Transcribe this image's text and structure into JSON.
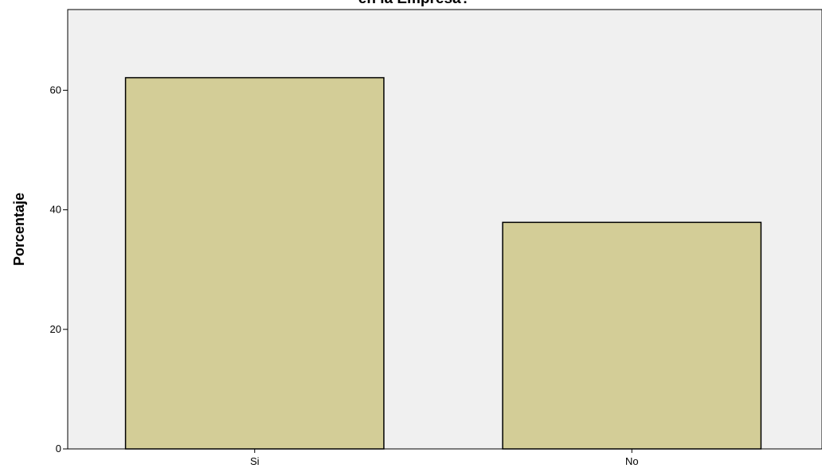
{
  "chart_data": {
    "type": "bar",
    "title": "en la Empresa?",
    "xlabel": "",
    "ylabel": "Porcentaje",
    "categories": [
      "Si",
      "No"
    ],
    "values": [
      62.1,
      37.9
    ],
    "ylim": [
      0,
      73.5
    ],
    "yticks": [
      0,
      20,
      40,
      60
    ],
    "ytick_labels": [
      "0",
      "20",
      "40",
      "60"
    ],
    "grid": false,
    "colors": {
      "bar_fill": "#d3cd97",
      "bar_stroke": "#000000",
      "plot_background": "#f0f0f0",
      "page_background": "#ffffff"
    }
  }
}
